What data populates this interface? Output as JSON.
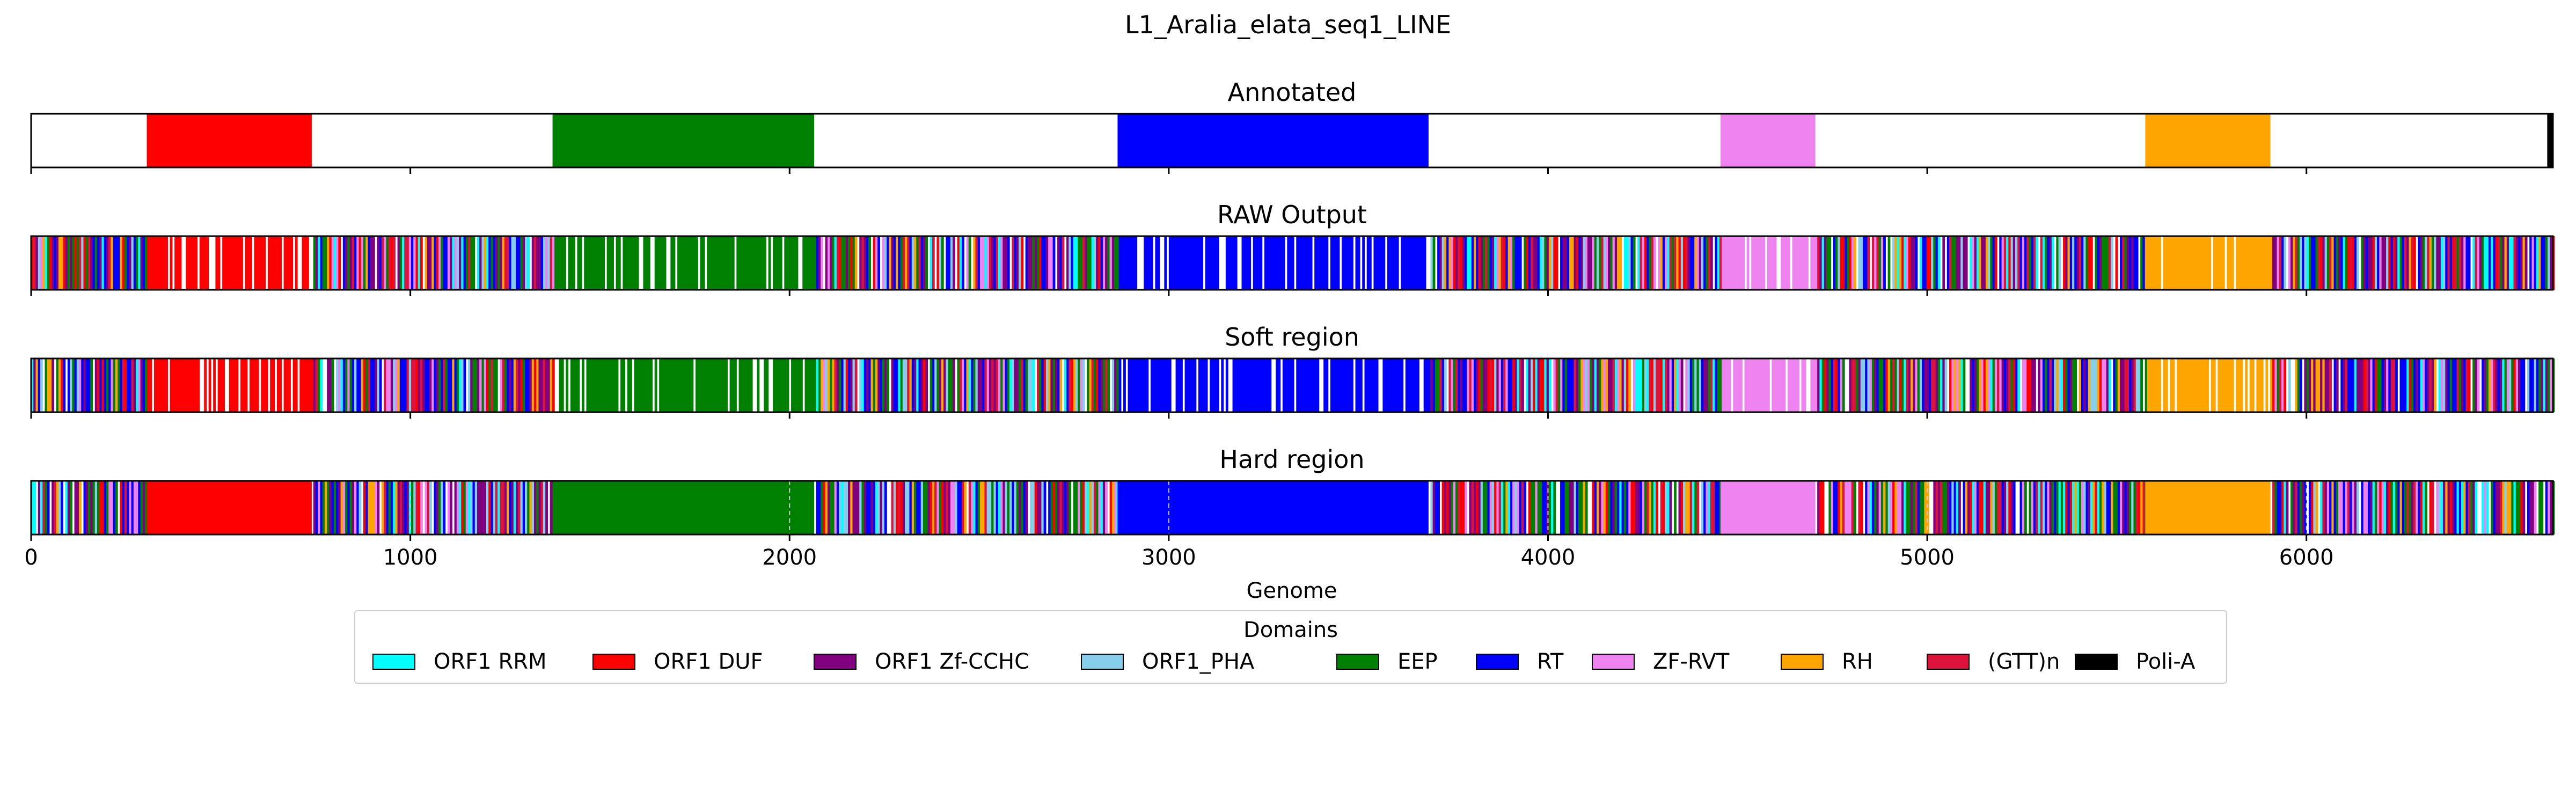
{
  "chart_data": {
    "type": "bar",
    "title": "L1_Aralia_elata_seq1_LINE",
    "xlabel": "Genome",
    "xlim": [
      0,
      6650
    ],
    "xticks": [
      0,
      1000,
      2000,
      3000,
      4000,
      5000,
      6000
    ],
    "xtick_labels": [
      "0",
      "1000",
      "2000",
      "3000",
      "4000",
      "5000",
      "6000"
    ],
    "legend": {
      "title": "Domains",
      "placement": "bottom-center",
      "entries": [
        {
          "name": "ORF1 RRM",
          "color": "#00ffff"
        },
        {
          "name": "ORF1 DUF",
          "color": "#ff0000"
        },
        {
          "name": "ORF1 Zf-CCHC",
          "color": "#800080"
        },
        {
          "name": "ORF1_PHA",
          "color": "#87ceeb"
        },
        {
          "name": "EEP",
          "color": "#008000"
        },
        {
          "name": "RT",
          "color": "#0000ff"
        },
        {
          "name": "ZF-RVT",
          "color": "#ee82ee"
        },
        {
          "name": "RH",
          "color": "#ffa500"
        },
        {
          "name": "(GTT)n",
          "color": "#dc143c"
        },
        {
          "name": "Poli-A",
          "color": "#000000"
        }
      ]
    },
    "panels": [
      {
        "title": "Annotated",
        "show_tick_labels": false,
        "segments": [
          {
            "domain": "ORF1 DUF",
            "start": 305,
            "end": 740
          },
          {
            "domain": "EEP",
            "start": 1375,
            "end": 2065
          },
          {
            "domain": "RT",
            "start": 2865,
            "end": 3685
          },
          {
            "domain": "ZF-RVT",
            "start": 4455,
            "end": 4705
          },
          {
            "domain": "RH",
            "start": 5575,
            "end": 5905
          },
          {
            "domain": "Poli-A",
            "start": 6635,
            "end": 6650
          }
        ]
      },
      {
        "title": "RAW Output",
        "show_tick_labels": false,
        "segments": [
          {
            "domain": "ORF1 DUF",
            "start": 305,
            "end": 740
          },
          {
            "domain": "EEP",
            "start": 1375,
            "end": 2065
          },
          {
            "domain": "RT",
            "start": 2865,
            "end": 3685
          },
          {
            "domain": "ZF-RVT",
            "start": 4455,
            "end": 4705
          },
          {
            "domain": "RH",
            "start": 5575,
            "end": 5905
          }
        ]
      },
      {
        "title": "Soft region",
        "show_tick_labels": false,
        "segments": [
          {
            "domain": "ORF1 DUF",
            "start": 305,
            "end": 740
          },
          {
            "domain": "EEP",
            "start": 1375,
            "end": 2065
          },
          {
            "domain": "RT",
            "start": 2865,
            "end": 3685
          },
          {
            "domain": "ZF-RVT",
            "start": 4455,
            "end": 4705
          },
          {
            "domain": "RH",
            "start": 5575,
            "end": 5905
          }
        ]
      },
      {
        "title": "Hard region",
        "show_tick_labels": true,
        "segments": [
          {
            "domain": "ORF1 DUF",
            "start": 305,
            "end": 740
          },
          {
            "domain": "EEP",
            "start": 1375,
            "end": 2065
          },
          {
            "domain": "RT",
            "start": 2865,
            "end": 3685
          },
          {
            "domain": "ZF-RVT",
            "start": 4455,
            "end": 4705
          },
          {
            "domain": "RH",
            "start": 5575,
            "end": 5905
          }
        ]
      }
    ]
  }
}
